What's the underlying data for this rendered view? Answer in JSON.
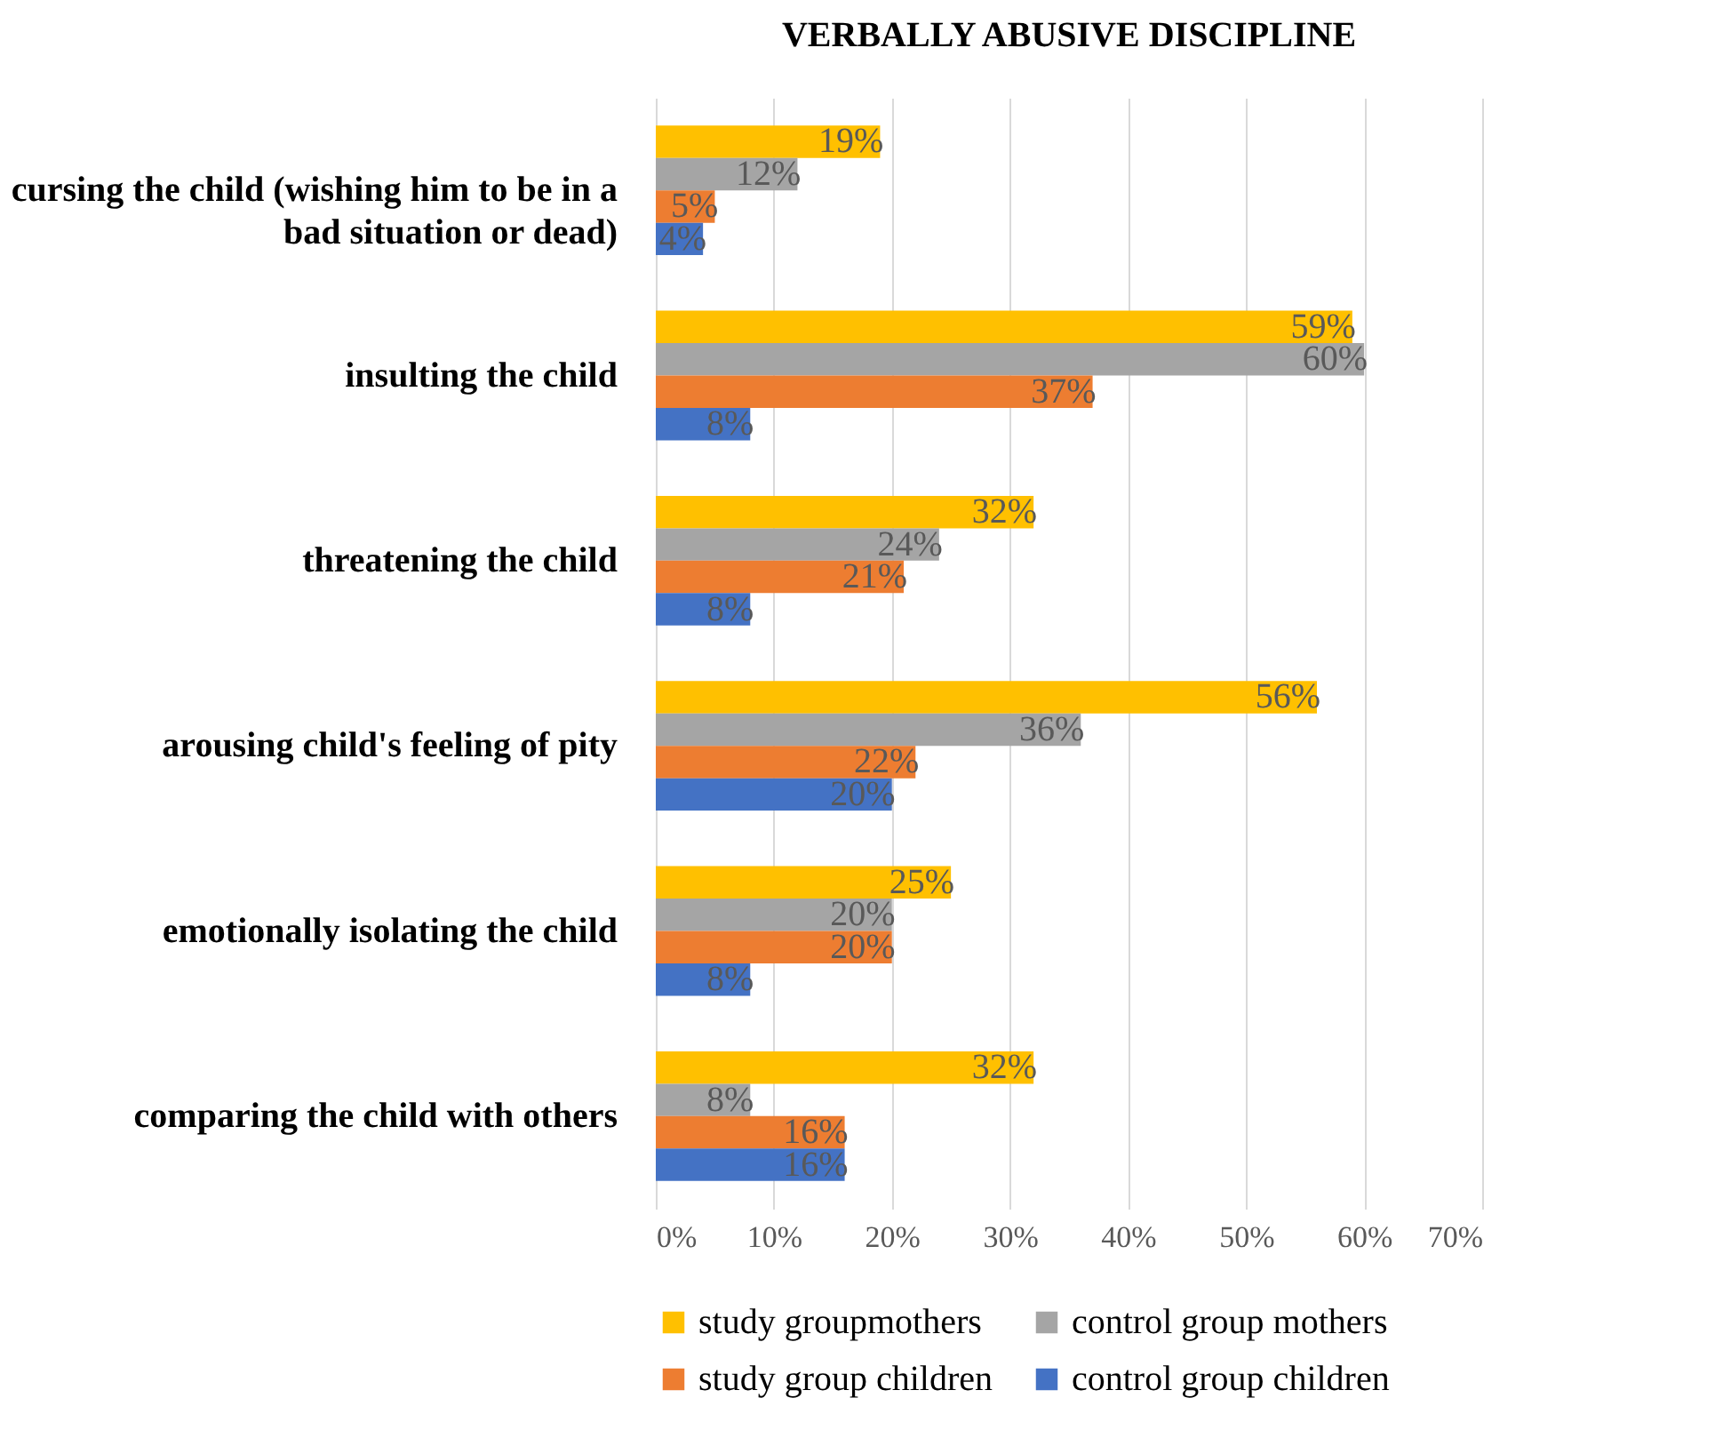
{
  "chart_data": {
    "type": "bar",
    "orientation": "horizontal",
    "title": "VERBALLY ABUSIVE DISCIPLINE",
    "categories": [
      "cursing the child (wishing him to be in a bad situation or dead)",
      "insulting the child",
      "threatening the child",
      "arousing child's feeling of pity",
      "emotionally isolating the child",
      "comparing the child with others"
    ],
    "series": [
      {
        "name": "study groupmothers",
        "color": "#ffc000",
        "values": [
          19,
          59,
          32,
          56,
          25,
          32
        ],
        "value_labels": [
          "19%",
          "59%",
          "32%",
          "56%",
          "25%",
          "32%"
        ]
      },
      {
        "name": "control group mothers",
        "color": "#a5a5a5",
        "values": [
          12,
          60,
          24,
          36,
          20,
          8
        ],
        "value_labels": [
          "12%",
          "60%",
          "24%",
          "36%",
          "20%",
          "8%"
        ]
      },
      {
        "name": "study group children",
        "color": "#ed7d31",
        "values": [
          5,
          37,
          21,
          22,
          20,
          16
        ],
        "value_labels": [
          "5%",
          "37%",
          "21%",
          "22%",
          "20%",
          "16%"
        ]
      },
      {
        "name": "control group children",
        "color": "#4472c4",
        "values": [
          4,
          8,
          8,
          20,
          8,
          16
        ],
        "value_labels": [
          "4%",
          "8%",
          "8%",
          "20%",
          "8%",
          "16%"
        ]
      }
    ],
    "xlim": [
      0,
      70
    ],
    "xticks": [
      {
        "value": 0,
        "label": "0%"
      },
      {
        "value": 10,
        "label": "10%"
      },
      {
        "value": 20,
        "label": "20%"
      },
      {
        "value": 30,
        "label": "30%"
      },
      {
        "value": 40,
        "label": "40%"
      },
      {
        "value": 50,
        "label": "50%"
      },
      {
        "value": 60,
        "label": "60%"
      },
      {
        "value": 70,
        "label": "70%"
      }
    ],
    "grid": "x",
    "legend": "bottom"
  }
}
